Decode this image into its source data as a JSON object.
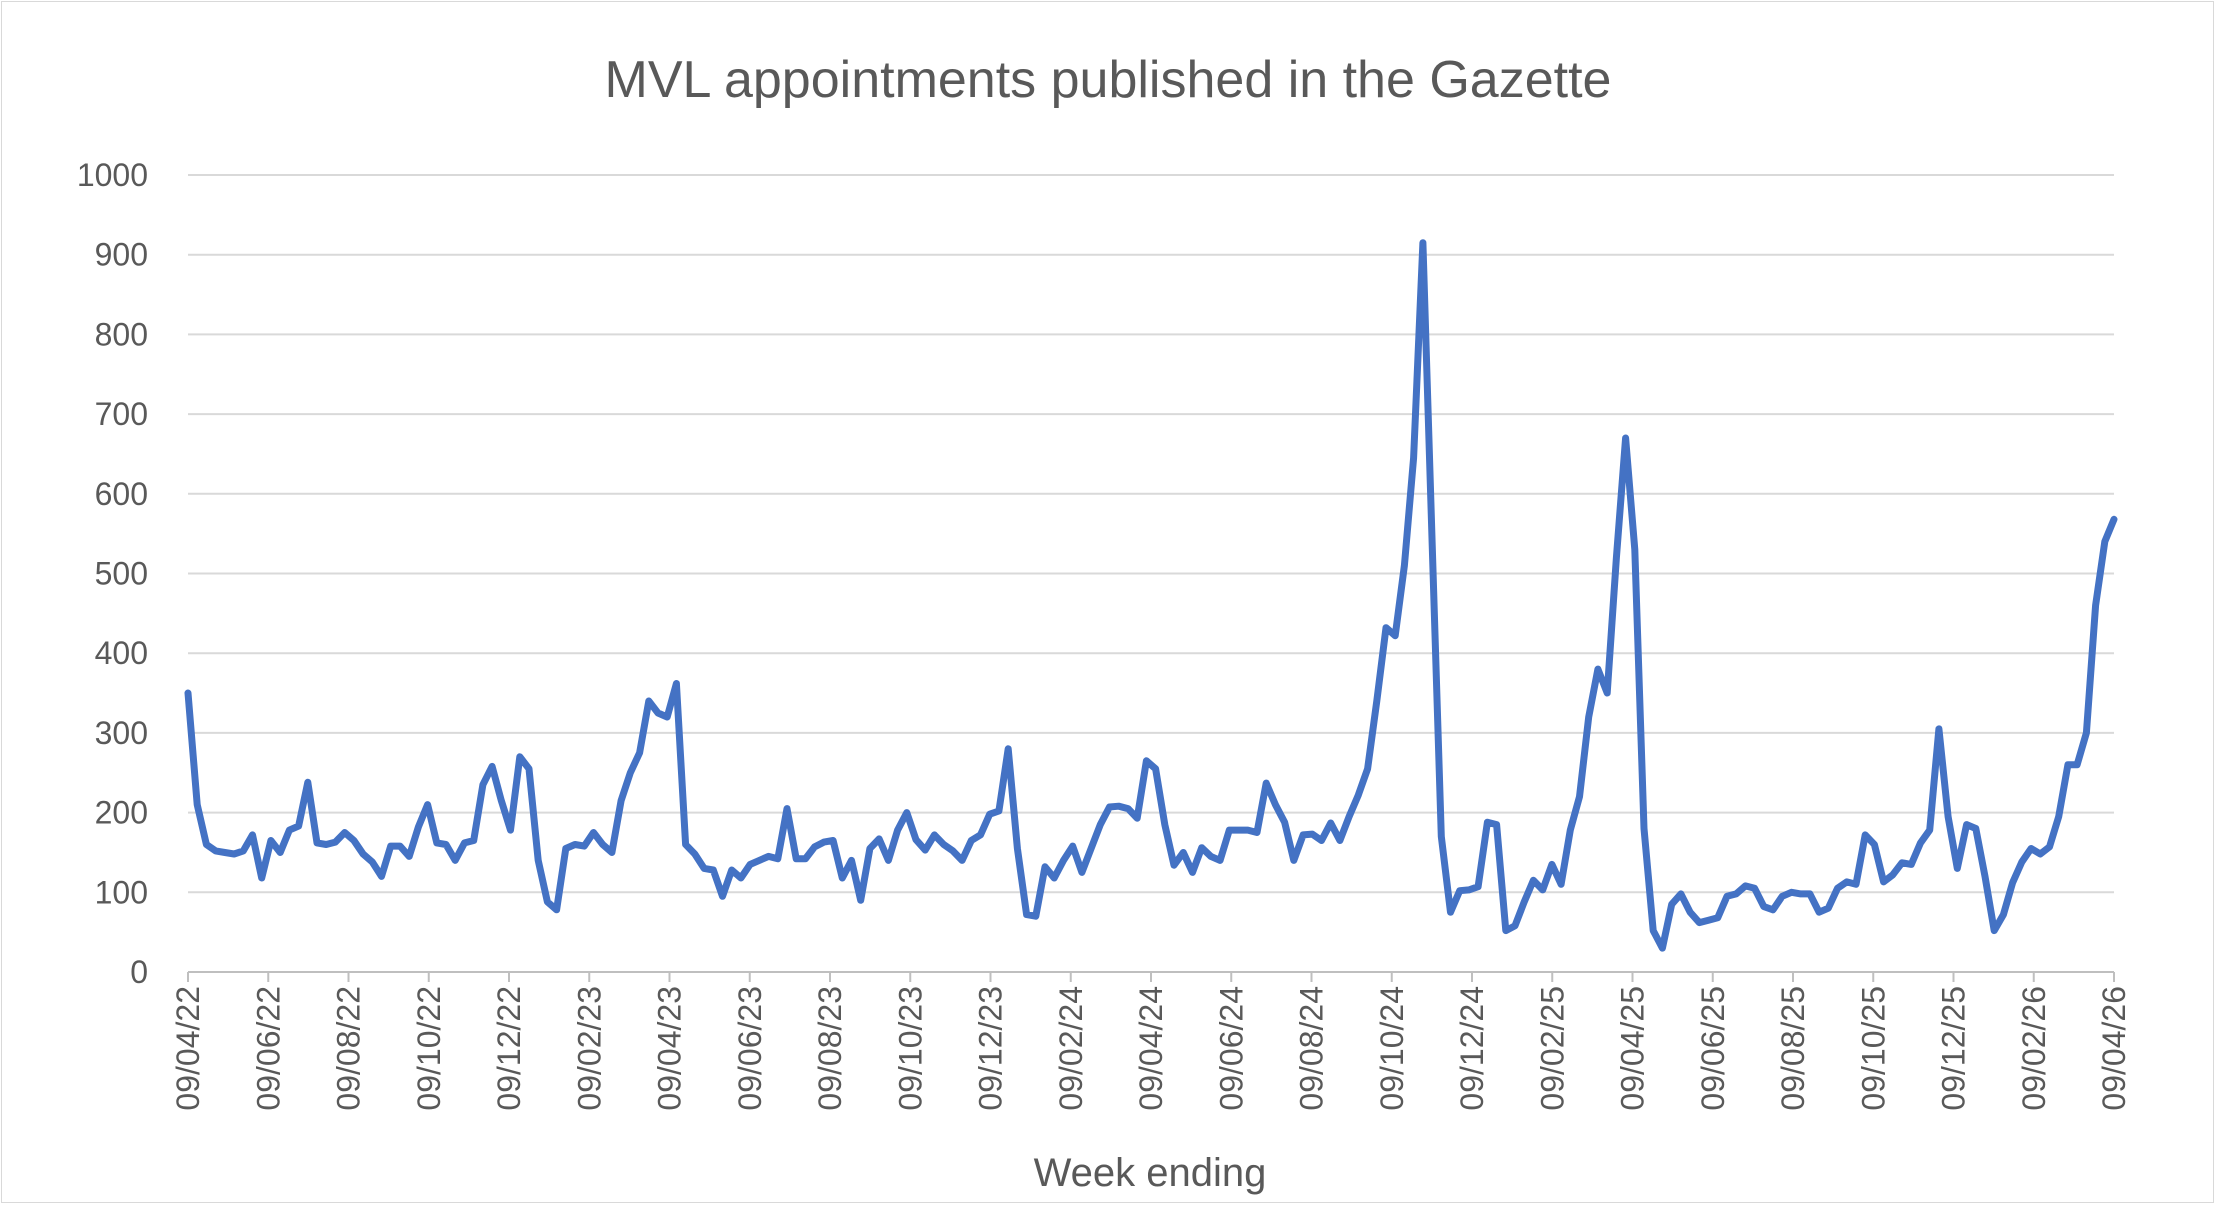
{
  "chart_data": {
    "type": "line",
    "title": "MVL appointments published in the Gazette",
    "xlabel": "Week ending",
    "ylabel": "",
    "ylim": [
      0,
      1000
    ],
    "yticks": [
      0,
      100,
      200,
      300,
      400,
      500,
      600,
      700,
      800,
      900,
      1000
    ],
    "grid": true,
    "legend": "none",
    "line_color": "#4472c4",
    "x_tick_labels": [
      "09/04/22",
      "09/06/22",
      "09/08/22",
      "09/10/22",
      "09/12/22",
      "09/02/23",
      "09/04/23",
      "09/06/23",
      "09/08/23",
      "09/10/23",
      "09/12/23",
      "09/02/24",
      "09/04/24",
      "09/06/24",
      "09/08/24",
      "09/10/24",
      "09/12/24",
      "09/02/25",
      "09/04/25",
      "09/06/25",
      "09/08/25",
      "09/10/25",
      "09/12/25",
      "09/02/26",
      "09/04/26"
    ],
    "series": [
      {
        "values": [
          350,
          210,
          160,
          152,
          150,
          148,
          152,
          172,
          118,
          165,
          150,
          178,
          183,
          238,
          162,
          160,
          163,
          175,
          165,
          148,
          138,
          120,
          158,
          158,
          145,
          182,
          210,
          162,
          160,
          140,
          162,
          165,
          235,
          258,
          215,
          178,
          270,
          255,
          140,
          88,
          78,
          155,
          160,
          158,
          175,
          160,
          150,
          215,
          250,
          275,
          340,
          325,
          320,
          362,
          160,
          148,
          130,
          128,
          95,
          128,
          118,
          135,
          140,
          145,
          142,
          205,
          142,
          142,
          157,
          163,
          165,
          118,
          140,
          90,
          155,
          167,
          140,
          178,
          200,
          166,
          153,
          172,
          160,
          152,
          140,
          165,
          172,
          198,
          202,
          280,
          155,
          72,
          70,
          132,
          118,
          140,
          158,
          125,
          155,
          185,
          207,
          208,
          205,
          193,
          265,
          255,
          185,
          134,
          150,
          125,
          156,
          145,
          140,
          178,
          178,
          178,
          175,
          237,
          210,
          188,
          140,
          172,
          173,
          165,
          187,
          165,
          195,
          222,
          255,
          340,
          432,
          422,
          510,
          645,
          915,
          540,
          170,
          75,
          102,
          103,
          107,
          188,
          185,
          52,
          58,
          88,
          115,
          103,
          135,
          110,
          178,
          220,
          320,
          380,
          350,
          520,
          670,
          530,
          180,
          52,
          30,
          85,
          98,
          75,
          62,
          65,
          68,
          95,
          98,
          108,
          105,
          82,
          78,
          95,
          100,
          98,
          98,
          75,
          80,
          105,
          113,
          110,
          172,
          160,
          113,
          122,
          137,
          135,
          162,
          178,
          305,
          195,
          130,
          185,
          180,
          120,
          52,
          72,
          112,
          138,
          155,
          148,
          157,
          195,
          260,
          260,
          300,
          460,
          540,
          568
        ]
      }
    ]
  }
}
